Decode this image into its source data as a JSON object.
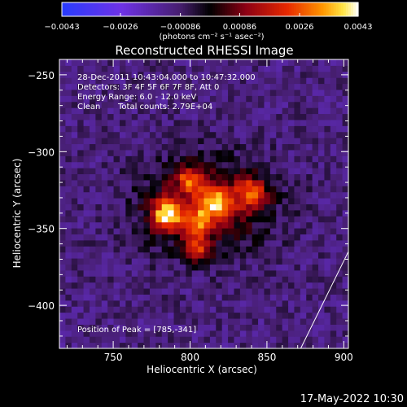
{
  "chart_data": {
    "type": "heatmap",
    "title": "Reconstructed RHESSI Image",
    "xlabel": "Heliocentric X (arcsec)",
    "ylabel": "Heliocentric Y (arcsec)",
    "xlim": [
      715,
      903
    ],
    "ylim": [
      -428,
      -240
    ],
    "x_ticks": [
      750,
      800,
      850,
      900
    ],
    "y_ticks": [
      -250,
      -300,
      -350,
      -400
    ],
    "x_tick_labels": [
      "750",
      "800",
      "850",
      "900"
    ],
    "y_tick_labels": [
      "−250",
      "−300",
      "−350",
      "−400"
    ],
    "colorbar": {
      "range": [
        -0.0043,
        0.0043
      ],
      "tick_values": [
        -0.0043,
        -0.0026,
        -0.00086,
        0.00086,
        0.0026,
        0.0043
      ],
      "tick_labels": [
        "−0.0043",
        "−0.0026",
        "−0.00086",
        "0.00086",
        "0.0026",
        "0.0043"
      ],
      "unit_label": "(photons cm⁻² s⁻¹ asec⁻²)"
    },
    "annotations": [
      "28-Dec-2011 10:43:04.000 to 10:47:32.000",
      "Detectors: 3F 4F 5F 6F 7F 8F, Att 0",
      "Energy Range: 6.0 - 12.0 keV",
      "Clean",
      "Total counts: 2.79E+04"
    ],
    "peak_label": "Position of Peak = [785,-341]",
    "peak": [
      785,
      -341
    ],
    "sources": [
      {
        "x": 785,
        "y": -341,
        "amp": 0.0043,
        "sx": 7,
        "sy": 7
      },
      {
        "x": 805,
        "y": -345,
        "amp": 0.0025,
        "sx": 6,
        "sy": 6
      },
      {
        "x": 817,
        "y": -333,
        "amp": 0.0034,
        "sx": 7,
        "sy": 7
      },
      {
        "x": 840,
        "y": -327,
        "amp": 0.0031,
        "sx": 7,
        "sy": 7
      },
      {
        "x": 800,
        "y": -318,
        "amp": 0.0028,
        "sx": 6,
        "sy": 6
      },
      {
        "x": 805,
        "y": -363,
        "amp": 0.0026,
        "sx": 6,
        "sy": 6
      },
      {
        "x": 810,
        "y": -335,
        "amp": 0.0019,
        "sx": 30,
        "sy": 22
      }
    ],
    "limb_line": [
      [
        872,
        -428
      ],
      [
        903,
        -365
      ]
    ]
  },
  "footer": {
    "date": "17-May-2022 10:30"
  }
}
